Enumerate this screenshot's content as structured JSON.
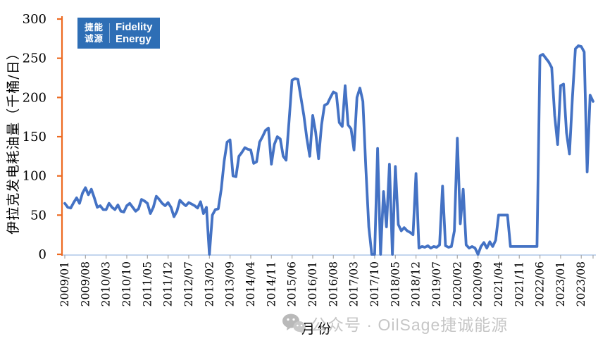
{
  "logo": {
    "cn_line1": "捷能",
    "cn_line2": "诚源",
    "en_line1": "Fidelity",
    "en_line2": "Energy",
    "bg_color": "#2E6EB5"
  },
  "watermark": {
    "icon": "wechat-icon",
    "text": "公众号 · OilSage捷诚能源",
    "color": "#c6c6c6"
  },
  "chart_data": {
    "type": "line",
    "title": "",
    "ylabel": "伊拉克发电耗油量（千桶/日）",
    "xlabel": "月份",
    "ylim": [
      0,
      300
    ],
    "y_ticks": [
      0,
      50,
      100,
      150,
      200,
      250,
      300
    ],
    "grid": false,
    "legend": "none",
    "x_start": "2009/01",
    "x_freq": "monthly",
    "x_label_step_months": 7,
    "x_tick_labels": [
      "2009/01",
      "2009/08",
      "2010/03",
      "2010/10",
      "2011/05",
      "2011/12",
      "2012/07",
      "2013/02",
      "2013/09",
      "2014/04",
      "2014/11",
      "2015/06",
      "2016/01",
      "2016/08",
      "2017/03",
      "2017/10",
      "2018/05",
      "2018/12",
      "2019/07",
      "2020/02",
      "2020/09",
      "2021/04",
      "2021/11",
      "2022/06",
      "2023/01",
      "2023/08"
    ],
    "axis_colors": {
      "y_axis": "#ED6A21",
      "x_axis": "#AFC7E8",
      "x_tick": "#A6A6A6",
      "tick_label": "#000000"
    },
    "series": [
      {
        "name": "伊拉克发电耗油量",
        "color": "#4472C4",
        "values": [
          65,
          60,
          59,
          66,
          72,
          65,
          78,
          85,
          76,
          83,
          72,
          60,
          62,
          57,
          57,
          65,
          60,
          57,
          63,
          55,
          54,
          62,
          65,
          60,
          55,
          58,
          70,
          68,
          65,
          52,
          60,
          74,
          70,
          65,
          62,
          66,
          60,
          48,
          55,
          69,
          65,
          62,
          66,
          64,
          62,
          59,
          67,
          52,
          60,
          0,
          50,
          57,
          58,
          83,
          119,
          143,
          146,
          100,
          99,
          125,
          130,
          136,
          134,
          133,
          116,
          118,
          143,
          150,
          158,
          161,
          115,
          140,
          150,
          147,
          125,
          120,
          170,
          222,
          224,
          223,
          200,
          177,
          148,
          125,
          177,
          156,
          122,
          165,
          190,
          192,
          200,
          207,
          205,
          168,
          163,
          215,
          165,
          160,
          133,
          200,
          212,
          195,
          110,
          35,
          0,
          0,
          135,
          0,
          80,
          35,
          115,
          0,
          112,
          38,
          30,
          34,
          30,
          28,
          25,
          103,
          8,
          10,
          9,
          11,
          8,
          10,
          9,
          12,
          87,
          11,
          9,
          10,
          30,
          148,
          39,
          83,
          12,
          8,
          10,
          8,
          0,
          10,
          15,
          8,
          16,
          10,
          18,
          50,
          50,
          50,
          50,
          10,
          10,
          10,
          10,
          10,
          10,
          10,
          10,
          10,
          10,
          253,
          255,
          250,
          245,
          238,
          177,
          140,
          215,
          217,
          155,
          128,
          200,
          262,
          266,
          265,
          258,
          105,
          203,
          195
        ]
      }
    ]
  }
}
